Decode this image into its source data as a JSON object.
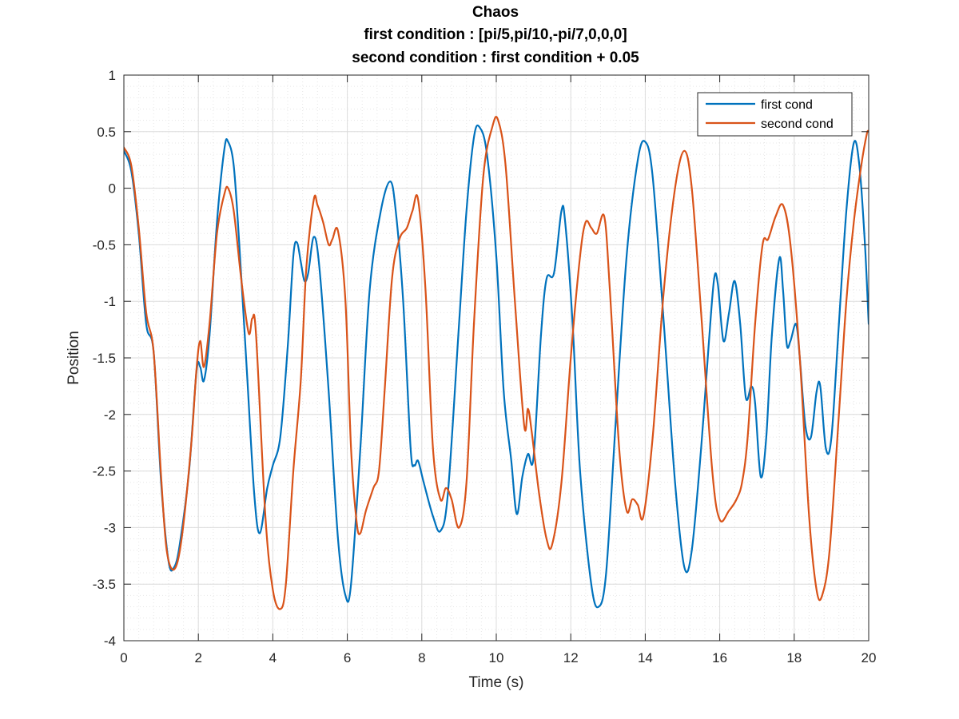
{
  "chart_data": {
    "type": "line",
    "title": [
      "Chaos",
      "first condition : [pi/5,pi/10,-pi/7,0,0,0]",
      "second condition : first condition + 0.05"
    ],
    "xlabel": "Time (s)",
    "ylabel": "Position",
    "xlim": [
      0,
      20
    ],
    "ylim": [
      -4,
      1
    ],
    "x_ticks": [
      0,
      2,
      4,
      6,
      8,
      10,
      12,
      14,
      16,
      18,
      20
    ],
    "y_ticks": [
      1,
      0.5,
      0,
      -0.5,
      -1,
      -1.5,
      -2,
      -2.5,
      -3,
      -3.5,
      -4
    ],
    "x_tick_labels": [
      "0",
      "2",
      "4",
      "6",
      "8",
      "10",
      "12",
      "14",
      "16",
      "18",
      "20"
    ],
    "y_tick_labels": [
      "1",
      "0.5",
      "0",
      "-0.5",
      "-1",
      "-1.5",
      "-2",
      "-2.5",
      "-3",
      "-3.5",
      "-4"
    ],
    "grid": true,
    "minor_grid": true,
    "legend_position": "top-right",
    "series": [
      {
        "name": "first cond",
        "color": "#0072bd",
        "points": [
          [
            0,
            0.33
          ],
          [
            0.2,
            0.15
          ],
          [
            0.4,
            -0.4
          ],
          [
            0.6,
            -1.2
          ],
          [
            0.8,
            -1.45
          ],
          [
            1.0,
            -2.6
          ],
          [
            1.2,
            -3.3
          ],
          [
            1.35,
            -3.35
          ],
          [
            1.5,
            -3.15
          ],
          [
            1.75,
            -2.5
          ],
          [
            1.95,
            -1.62
          ],
          [
            2.05,
            -1.58
          ],
          [
            2.15,
            -1.7
          ],
          [
            2.3,
            -1.3
          ],
          [
            2.5,
            -0.3
          ],
          [
            2.7,
            0.35
          ],
          [
            2.8,
            0.41
          ],
          [
            2.95,
            0.2
          ],
          [
            3.1,
            -0.5
          ],
          [
            3.3,
            -1.6
          ],
          [
            3.5,
            -2.7
          ],
          [
            3.65,
            -3.05
          ],
          [
            3.85,
            -2.65
          ],
          [
            4.0,
            -2.45
          ],
          [
            4.2,
            -2.2
          ],
          [
            4.4,
            -1.4
          ],
          [
            4.55,
            -0.6
          ],
          [
            4.65,
            -0.48
          ],
          [
            4.75,
            -0.65
          ],
          [
            4.85,
            -0.82
          ],
          [
            4.95,
            -0.75
          ],
          [
            5.1,
            -0.43
          ],
          [
            5.25,
            -0.7
          ],
          [
            5.5,
            -1.8
          ],
          [
            5.75,
            -3.1
          ],
          [
            5.95,
            -3.6
          ],
          [
            6.1,
            -3.5
          ],
          [
            6.35,
            -2.3
          ],
          [
            6.6,
            -0.9
          ],
          [
            6.9,
            -0.2
          ],
          [
            7.15,
            0.06
          ],
          [
            7.3,
            -0.2
          ],
          [
            7.5,
            -1.0
          ],
          [
            7.7,
            -2.3
          ],
          [
            7.8,
            -2.45
          ],
          [
            7.9,
            -2.41
          ],
          [
            8.05,
            -2.6
          ],
          [
            8.3,
            -2.9
          ],
          [
            8.5,
            -3.03
          ],
          [
            8.7,
            -2.7
          ],
          [
            9.0,
            -1.2
          ],
          [
            9.2,
            -0.2
          ],
          [
            9.4,
            0.45
          ],
          [
            9.55,
            0.54
          ],
          [
            9.75,
            0.3
          ],
          [
            10.0,
            -0.6
          ],
          [
            10.2,
            -1.8
          ],
          [
            10.4,
            -2.4
          ],
          [
            10.55,
            -2.88
          ],
          [
            10.7,
            -2.55
          ],
          [
            10.85,
            -2.35
          ],
          [
            11.0,
            -2.38
          ],
          [
            11.2,
            -1.3
          ],
          [
            11.35,
            -0.8
          ],
          [
            11.55,
            -0.75
          ],
          [
            11.75,
            -0.2
          ],
          [
            11.85,
            -0.3
          ],
          [
            12.05,
            -1.2
          ],
          [
            12.25,
            -2.5
          ],
          [
            12.55,
            -3.5
          ],
          [
            12.75,
            -3.7
          ],
          [
            12.95,
            -3.4
          ],
          [
            13.2,
            -2.1
          ],
          [
            13.5,
            -0.6
          ],
          [
            13.8,
            0.25
          ],
          [
            14.0,
            0.41
          ],
          [
            14.2,
            0.1
          ],
          [
            14.5,
            -1.2
          ],
          [
            14.8,
            -2.6
          ],
          [
            15.05,
            -3.35
          ],
          [
            15.25,
            -3.2
          ],
          [
            15.5,
            -2.3
          ],
          [
            15.7,
            -1.4
          ],
          [
            15.85,
            -0.8
          ],
          [
            15.95,
            -0.85
          ],
          [
            16.1,
            -1.35
          ],
          [
            16.25,
            -1.1
          ],
          [
            16.4,
            -0.82
          ],
          [
            16.55,
            -1.2
          ],
          [
            16.7,
            -1.85
          ],
          [
            16.85,
            -1.75
          ],
          [
            16.95,
            -1.9
          ],
          [
            17.1,
            -2.55
          ],
          [
            17.25,
            -2.2
          ],
          [
            17.4,
            -1.3
          ],
          [
            17.6,
            -0.62
          ],
          [
            17.7,
            -0.9
          ],
          [
            17.8,
            -1.38
          ],
          [
            17.9,
            -1.35
          ],
          [
            18.05,
            -1.2
          ],
          [
            18.15,
            -1.5
          ],
          [
            18.3,
            -2.1
          ],
          [
            18.45,
            -2.2
          ],
          [
            18.6,
            -1.8
          ],
          [
            18.7,
            -1.75
          ],
          [
            18.85,
            -2.3
          ],
          [
            19.0,
            -2.2
          ],
          [
            19.2,
            -1.2
          ],
          [
            19.4,
            -0.2
          ],
          [
            19.6,
            0.4
          ],
          [
            19.75,
            0.2
          ],
          [
            19.9,
            -0.5
          ],
          [
            20.0,
            -1.2
          ]
        ]
      },
      {
        "name": "second cond",
        "color": "#d95319",
        "points": [
          [
            0,
            0.36
          ],
          [
            0.2,
            0.2
          ],
          [
            0.4,
            -0.35
          ],
          [
            0.6,
            -1.1
          ],
          [
            0.8,
            -1.45
          ],
          [
            1.0,
            -2.55
          ],
          [
            1.15,
            -3.2
          ],
          [
            1.35,
            -3.37
          ],
          [
            1.55,
            -3.1
          ],
          [
            1.8,
            -2.3
          ],
          [
            1.95,
            -1.6
          ],
          [
            2.05,
            -1.35
          ],
          [
            2.15,
            -1.58
          ],
          [
            2.3,
            -1.2
          ],
          [
            2.5,
            -0.4
          ],
          [
            2.7,
            -0.05
          ],
          [
            2.8,
            0.0
          ],
          [
            2.95,
            -0.2
          ],
          [
            3.15,
            -0.8
          ],
          [
            3.35,
            -1.28
          ],
          [
            3.45,
            -1.15
          ],
          [
            3.55,
            -1.3
          ],
          [
            3.8,
            -2.9
          ],
          [
            4.0,
            -3.55
          ],
          [
            4.2,
            -3.72
          ],
          [
            4.35,
            -3.5
          ],
          [
            4.55,
            -2.5
          ],
          [
            4.75,
            -1.7
          ],
          [
            4.9,
            -0.7
          ],
          [
            5.1,
            -0.1
          ],
          [
            5.2,
            -0.15
          ],
          [
            5.35,
            -0.3
          ],
          [
            5.5,
            -0.5
          ],
          [
            5.6,
            -0.45
          ],
          [
            5.75,
            -0.38
          ],
          [
            5.95,
            -1.0
          ],
          [
            6.1,
            -2.3
          ],
          [
            6.25,
            -2.95
          ],
          [
            6.35,
            -3.05
          ],
          [
            6.5,
            -2.85
          ],
          [
            6.7,
            -2.65
          ],
          [
            6.85,
            -2.5
          ],
          [
            7.0,
            -1.8
          ],
          [
            7.2,
            -0.8
          ],
          [
            7.4,
            -0.45
          ],
          [
            7.6,
            -0.35
          ],
          [
            7.75,
            -0.2
          ],
          [
            7.9,
            -0.1
          ],
          [
            8.1,
            -0.9
          ],
          [
            8.3,
            -2.3
          ],
          [
            8.5,
            -2.75
          ],
          [
            8.65,
            -2.65
          ],
          [
            8.8,
            -2.75
          ],
          [
            9.0,
            -3.0
          ],
          [
            9.2,
            -2.6
          ],
          [
            9.4,
            -1.2
          ],
          [
            9.65,
            0.1
          ],
          [
            9.9,
            0.55
          ],
          [
            10.05,
            0.6
          ],
          [
            10.25,
            0.2
          ],
          [
            10.5,
            -1.0
          ],
          [
            10.75,
            -2.1
          ],
          [
            10.85,
            -1.95
          ],
          [
            10.95,
            -2.15
          ],
          [
            11.15,
            -2.7
          ],
          [
            11.35,
            -3.1
          ],
          [
            11.5,
            -3.15
          ],
          [
            11.75,
            -2.6
          ],
          [
            12.0,
            -1.5
          ],
          [
            12.25,
            -0.6
          ],
          [
            12.4,
            -0.3
          ],
          [
            12.55,
            -0.35
          ],
          [
            12.7,
            -0.4
          ],
          [
            12.9,
            -0.25
          ],
          [
            13.05,
            -0.9
          ],
          [
            13.3,
            -2.3
          ],
          [
            13.5,
            -2.85
          ],
          [
            13.65,
            -2.75
          ],
          [
            13.8,
            -2.8
          ],
          [
            13.95,
            -2.9
          ],
          [
            14.2,
            -2.2
          ],
          [
            14.5,
            -0.9
          ],
          [
            14.8,
            0.0
          ],
          [
            15.05,
            0.33
          ],
          [
            15.25,
            0.0
          ],
          [
            15.5,
            -1.1
          ],
          [
            15.8,
            -2.5
          ],
          [
            16.0,
            -2.93
          ],
          [
            16.25,
            -2.85
          ],
          [
            16.45,
            -2.75
          ],
          [
            16.6,
            -2.6
          ],
          [
            16.75,
            -2.2
          ],
          [
            16.95,
            -1.2
          ],
          [
            17.15,
            -0.5
          ],
          [
            17.3,
            -0.45
          ],
          [
            17.5,
            -0.25
          ],
          [
            17.7,
            -0.15
          ],
          [
            17.9,
            -0.5
          ],
          [
            18.15,
            -1.5
          ],
          [
            18.4,
            -2.9
          ],
          [
            18.6,
            -3.55
          ],
          [
            18.75,
            -3.6
          ],
          [
            18.95,
            -3.2
          ],
          [
            19.2,
            -2.0
          ],
          [
            19.4,
            -1.0
          ],
          [
            19.6,
            -0.3
          ],
          [
            19.8,
            0.2
          ],
          [
            19.95,
            0.48
          ],
          [
            20.0,
            0.5
          ]
        ]
      }
    ]
  },
  "colors": {
    "axis": "#262626",
    "grid": "#dcdcdc",
    "minor_grid": "#e6e6e6",
    "background": "#ffffff"
  }
}
